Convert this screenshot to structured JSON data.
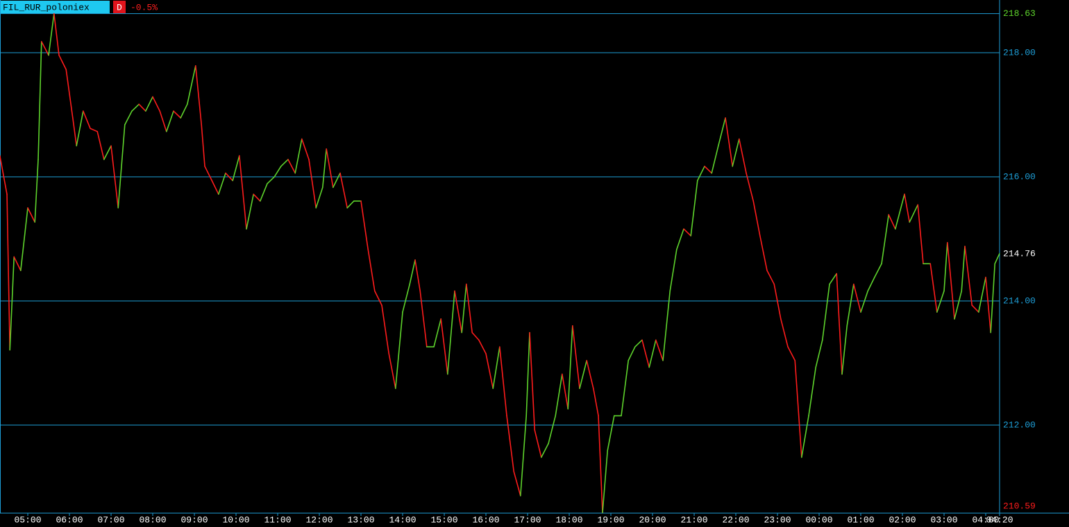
{
  "chart_data": {
    "type": "line",
    "title": "FIL_RUR_poloniex",
    "period": "D",
    "change": "-0.5%",
    "up_color": "#5ed42c",
    "down_color": "#ff1c1c",
    "grid_color": "#1e9fd8",
    "grid": true,
    "xlim": [
      4.333,
      28.333
    ],
    "ylim": [
      210.58,
      218.85
    ],
    "xticks": [
      {
        "value": 5,
        "label": "05:00"
      },
      {
        "value": 6,
        "label": "06:00"
      },
      {
        "value": 7,
        "label": "07:00"
      },
      {
        "value": 8,
        "label": "08:00"
      },
      {
        "value": 9,
        "label": "09:00"
      },
      {
        "value": 10,
        "label": "10:00"
      },
      {
        "value": 11,
        "label": "11:00"
      },
      {
        "value": 12,
        "label": "12:00"
      },
      {
        "value": 13,
        "label": "13:00"
      },
      {
        "value": 14,
        "label": "14:00"
      },
      {
        "value": 15,
        "label": "15:00"
      },
      {
        "value": 16,
        "label": "16:00"
      },
      {
        "value": 17,
        "label": "17:00"
      },
      {
        "value": 18,
        "label": "18:00"
      },
      {
        "value": 19,
        "label": "19:00"
      },
      {
        "value": 20,
        "label": "20:00"
      },
      {
        "value": 21,
        "label": "21:00"
      },
      {
        "value": 22,
        "label": "22:00"
      },
      {
        "value": 23,
        "label": "23:00"
      },
      {
        "value": 24,
        "label": "00:00"
      },
      {
        "value": 25,
        "label": "01:00"
      },
      {
        "value": 26,
        "label": "02:00"
      },
      {
        "value": 27,
        "label": "03:00"
      },
      {
        "value": 28,
        "label": "04:00"
      },
      {
        "value": 28.333,
        "label": "04:20"
      }
    ],
    "yticks": [
      {
        "value": 212,
        "label": "212.00"
      },
      {
        "value": 214,
        "label": "214.00"
      },
      {
        "value": 216,
        "label": "216.00"
      },
      {
        "value": 218,
        "label": "218.00"
      }
    ],
    "high": {
      "value": 218.63,
      "label": "218.63"
    },
    "last": {
      "value": 214.76,
      "label": "214.76"
    },
    "low": {
      "value": 210.59,
      "label": "210.59"
    },
    "x": [
      4.33,
      4.5,
      4.57,
      4.67,
      4.83,
      5.0,
      5.17,
      5.25,
      5.33,
      5.5,
      5.63,
      5.75,
      5.92,
      6.08,
      6.17,
      6.33,
      6.5,
      6.67,
      6.83,
      7.0,
      7.17,
      7.33,
      7.5,
      7.67,
      7.83,
      8.0,
      8.17,
      8.33,
      8.5,
      8.67,
      8.83,
      9.03,
      9.17,
      9.25,
      9.42,
      9.58,
      9.75,
      9.92,
      10.08,
      10.25,
      10.42,
      10.58,
      10.75,
      10.92,
      11.08,
      11.25,
      11.42,
      11.58,
      11.75,
      11.92,
      12.08,
      12.17,
      12.33,
      12.5,
      12.67,
      12.83,
      13.0,
      13.17,
      13.33,
      13.5,
      13.67,
      13.83,
      14.0,
      14.17,
      14.3,
      14.42,
      14.58,
      14.75,
      14.92,
      15.08,
      15.25,
      15.42,
      15.53,
      15.67,
      15.83,
      16.0,
      16.17,
      16.33,
      16.5,
      16.67,
      16.83,
      16.97,
      17.05,
      17.17,
      17.33,
      17.5,
      17.67,
      17.83,
      17.97,
      18.08,
      18.25,
      18.42,
      18.58,
      18.7,
      18.8,
      18.92,
      19.08,
      19.25,
      19.42,
      19.58,
      19.75,
      19.92,
      20.08,
      20.25,
      20.42,
      20.58,
      20.75,
      20.92,
      21.08,
      21.25,
      21.42,
      21.58,
      21.75,
      21.92,
      22.08,
      22.25,
      22.42,
      22.58,
      22.75,
      22.92,
      23.08,
      23.25,
      23.42,
      23.58,
      23.75,
      23.92,
      24.08,
      24.25,
      24.42,
      24.55,
      24.67,
      24.83,
      25.0,
      25.17,
      25.33,
      25.5,
      25.67,
      25.83,
      26.05,
      26.17,
      26.37,
      26.5,
      26.67,
      26.83,
      27.0,
      27.08,
      27.25,
      27.42,
      27.5,
      27.67,
      27.83,
      28.0,
      28.12,
      28.22,
      28.33
    ],
    "values": [
      216.34,
      215.72,
      213.21,
      214.71,
      214.49,
      215.5,
      215.27,
      216.28,
      218.18,
      217.96,
      218.63,
      217.96,
      217.73,
      216.95,
      216.5,
      217.06,
      216.78,
      216.73,
      216.28,
      216.5,
      215.5,
      216.84,
      217.06,
      217.17,
      217.06,
      217.29,
      217.06,
      216.73,
      217.06,
      216.95,
      217.17,
      217.79,
      216.84,
      216.17,
      215.94,
      215.72,
      216.06,
      215.94,
      216.34,
      215.16,
      215.72,
      215.61,
      215.89,
      216.0,
      216.17,
      216.28,
      216.06,
      216.61,
      216.28,
      215.5,
      215.83,
      216.45,
      215.83,
      216.06,
      215.5,
      215.61,
      215.61,
      214.83,
      214.16,
      213.93,
      213.15,
      212.59,
      213.82,
      214.27,
      214.66,
      214.16,
      213.26,
      213.26,
      213.71,
      212.82,
      214.16,
      213.49,
      214.27,
      213.49,
      213.37,
      213.15,
      212.59,
      213.26,
      212.15,
      211.25,
      210.86,
      212.15,
      213.49,
      211.92,
      211.48,
      211.7,
      212.15,
      212.82,
      212.26,
      213.6,
      212.59,
      213.04,
      212.59,
      212.15,
      210.59,
      211.59,
      212.15,
      212.15,
      213.04,
      213.26,
      213.37,
      212.93,
      213.37,
      213.04,
      214.16,
      214.83,
      215.16,
      215.05,
      215.94,
      216.17,
      216.06,
      216.5,
      216.95,
      216.17,
      216.61,
      216.06,
      215.61,
      215.05,
      214.49,
      214.27,
      213.71,
      213.26,
      213.04,
      211.48,
      212.15,
      212.93,
      213.37,
      214.27,
      214.44,
      212.82,
      213.6,
      214.27,
      213.82,
      214.16,
      214.38,
      214.6,
      215.39,
      215.16,
      215.72,
      215.27,
      215.55,
      214.6,
      214.6,
      213.82,
      214.16,
      214.94,
      213.71,
      214.16,
      214.88,
      213.93,
      213.82,
      214.38,
      213.49,
      214.6,
      214.76
    ]
  }
}
